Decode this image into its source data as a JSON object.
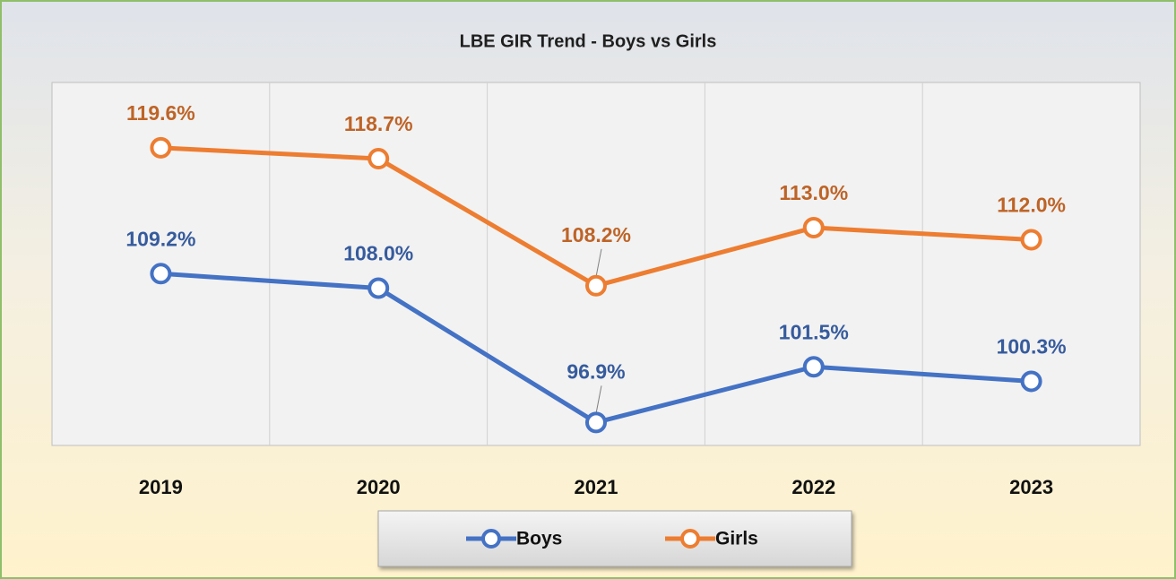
{
  "chart_data": {
    "type": "line",
    "title": "LBE GIR Trend - Boys vs Girls",
    "categories": [
      "2019",
      "2020",
      "2021",
      "2022",
      "2023"
    ],
    "series": [
      {
        "name": "Boys",
        "color": "#4472c4",
        "values": [
          109.2,
          108.0,
          96.9,
          101.5,
          100.3
        ],
        "value_labels": [
          "109.2%",
          "108.0%",
          "96.9%",
          "101.5%",
          "100.3%"
        ]
      },
      {
        "name": "Girls",
        "color": "#ed7d31",
        "values": [
          119.6,
          118.7,
          108.2,
          113.0,
          112.0
        ],
        "value_labels": [
          "119.6%",
          "118.7%",
          "108.2%",
          "113.0%",
          "112.0%"
        ]
      }
    ],
    "ylim": [
      95,
      125
    ],
    "legend": "bottom"
  }
}
